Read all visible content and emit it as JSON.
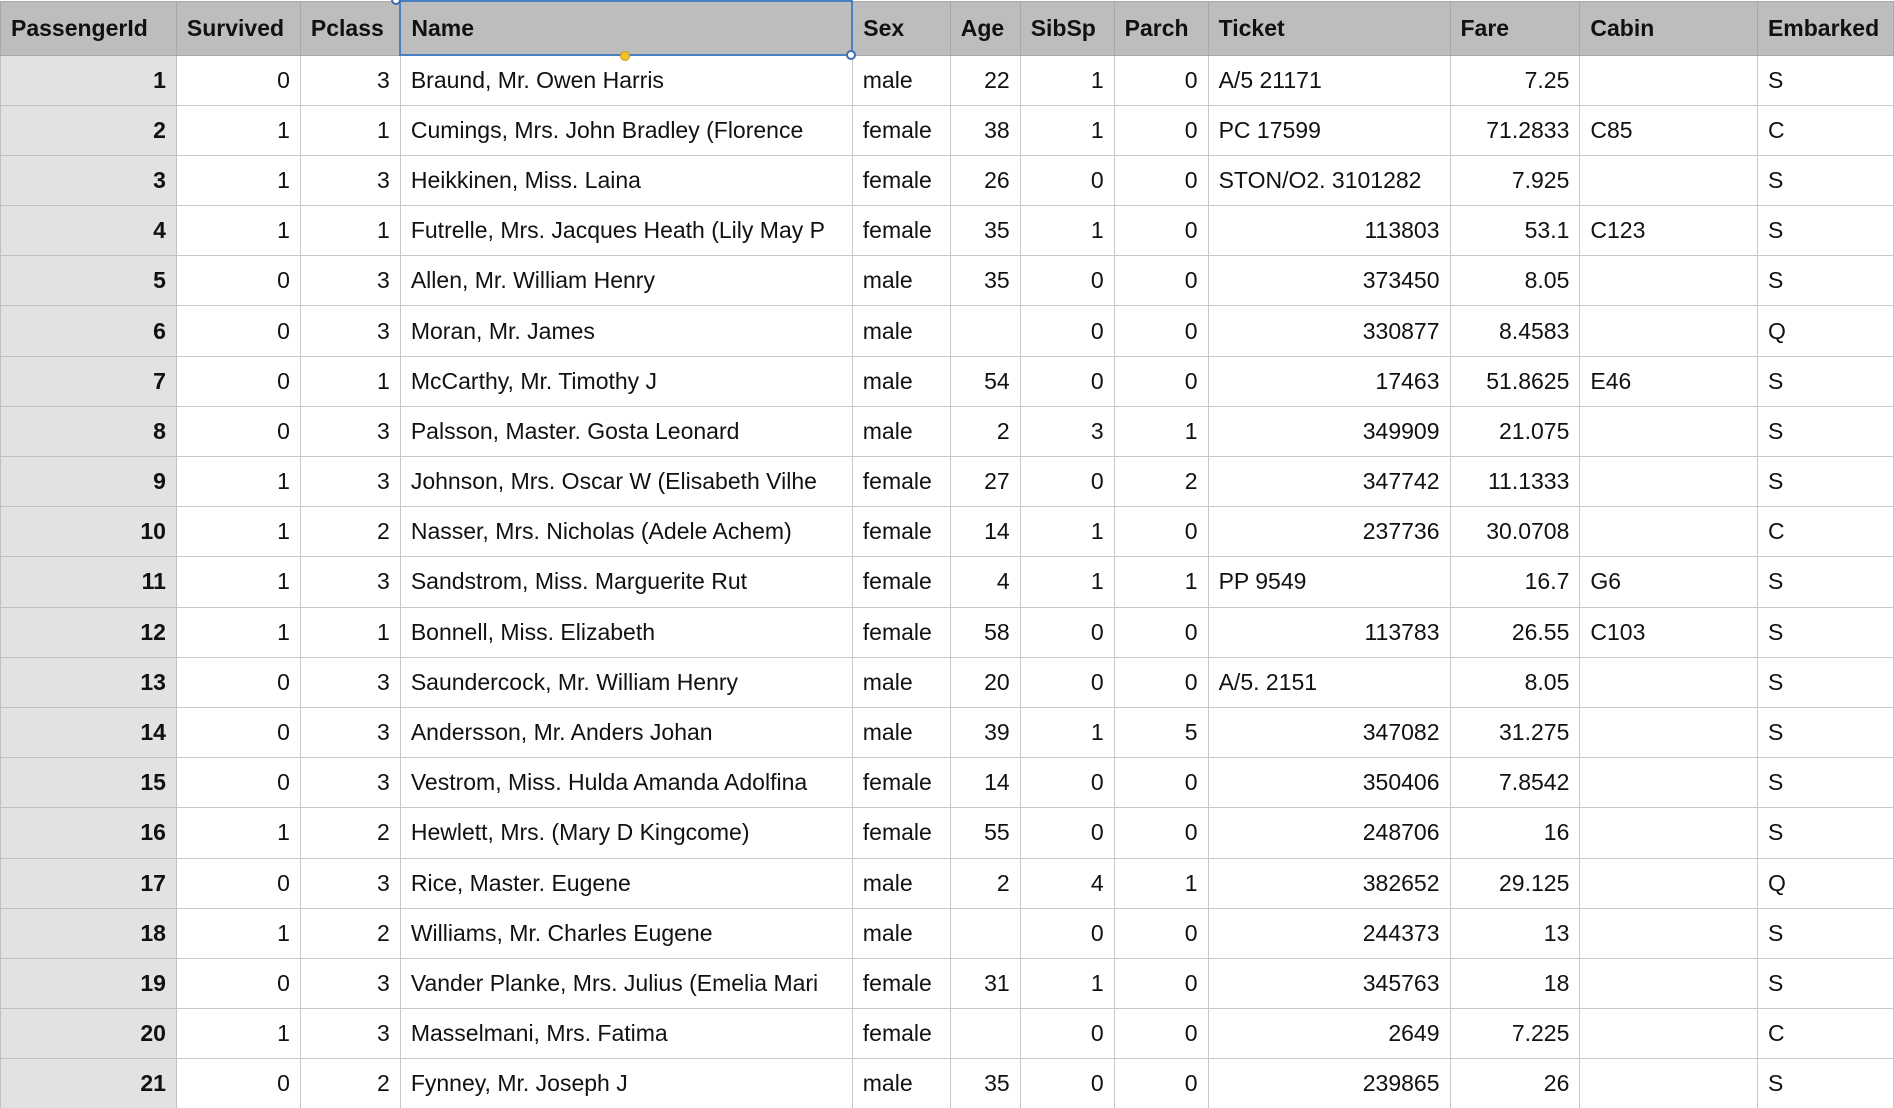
{
  "columns": [
    "PassengerId",
    "Survived",
    "Pclass",
    "Name",
    "Sex",
    "Age",
    "SibSp",
    "Parch",
    "Ticket",
    "Fare",
    "Cabin",
    "Embarked"
  ],
  "rows": [
    [
      "1",
      "0",
      "3",
      "Braund, Mr. Owen Harris",
      "male",
      "22",
      "1",
      "0",
      "A/5 21171",
      "7.25",
      "",
      "S"
    ],
    [
      "2",
      "1",
      "1",
      "Cumings, Mrs. John Bradley (Florence",
      "female",
      "38",
      "1",
      "0",
      "PC 17599",
      "71.2833",
      "C85",
      "C"
    ],
    [
      "3",
      "1",
      "3",
      "Heikkinen, Miss. Laina",
      "female",
      "26",
      "0",
      "0",
      "STON/O2. 3101282",
      "7.925",
      "",
      "S"
    ],
    [
      "4",
      "1",
      "1",
      "Futrelle, Mrs. Jacques Heath (Lily May P",
      "female",
      "35",
      "1",
      "0",
      "113803",
      "53.1",
      "C123",
      "S"
    ],
    [
      "5",
      "0",
      "3",
      "Allen, Mr. William Henry",
      "male",
      "35",
      "0",
      "0",
      "373450",
      "8.05",
      "",
      "S"
    ],
    [
      "6",
      "0",
      "3",
      "Moran, Mr. James",
      "male",
      "",
      "0",
      "0",
      "330877",
      "8.4583",
      "",
      "Q"
    ],
    [
      "7",
      "0",
      "1",
      "McCarthy, Mr. Timothy J",
      "male",
      "54",
      "0",
      "0",
      "17463",
      "51.8625",
      "E46",
      "S"
    ],
    [
      "8",
      "0",
      "3",
      "Palsson, Master. Gosta Leonard",
      "male",
      "2",
      "3",
      "1",
      "349909",
      "21.075",
      "",
      "S"
    ],
    [
      "9",
      "1",
      "3",
      "Johnson, Mrs. Oscar W (Elisabeth Vilhe",
      "female",
      "27",
      "0",
      "2",
      "347742",
      "11.1333",
      "",
      "S"
    ],
    [
      "10",
      "1",
      "2",
      "Nasser, Mrs. Nicholas (Adele Achem)",
      "female",
      "14",
      "1",
      "0",
      "237736",
      "30.0708",
      "",
      "C"
    ],
    [
      "11",
      "1",
      "3",
      "Sandstrom, Miss. Marguerite Rut",
      "female",
      "4",
      "1",
      "1",
      "PP 9549",
      "16.7",
      "G6",
      "S"
    ],
    [
      "12",
      "1",
      "1",
      "Bonnell, Miss. Elizabeth",
      "female",
      "58",
      "0",
      "0",
      "113783",
      "26.55",
      "C103",
      "S"
    ],
    [
      "13",
      "0",
      "3",
      "Saundercock, Mr. William Henry",
      "male",
      "20",
      "0",
      "0",
      "A/5. 2151",
      "8.05",
      "",
      "S"
    ],
    [
      "14",
      "0",
      "3",
      "Andersson, Mr. Anders Johan",
      "male",
      "39",
      "1",
      "5",
      "347082",
      "31.275",
      "",
      "S"
    ],
    [
      "15",
      "0",
      "3",
      "Vestrom, Miss. Hulda Amanda Adolfina",
      "female",
      "14",
      "0",
      "0",
      "350406",
      "7.8542",
      "",
      "S"
    ],
    [
      "16",
      "1",
      "2",
      "Hewlett, Mrs. (Mary D Kingcome)",
      "female",
      "55",
      "0",
      "0",
      "248706",
      "16",
      "",
      "S"
    ],
    [
      "17",
      "0",
      "3",
      "Rice, Master. Eugene",
      "male",
      "2",
      "4",
      "1",
      "382652",
      "29.125",
      "",
      "Q"
    ],
    [
      "18",
      "1",
      "2",
      "Williams, Mr. Charles Eugene",
      "male",
      "",
      "0",
      "0",
      "244373",
      "13",
      "",
      "S"
    ],
    [
      "19",
      "0",
      "3",
      "Vander Planke, Mrs. Julius (Emelia Mari",
      "female",
      "31",
      "1",
      "0",
      "345763",
      "18",
      "",
      "S"
    ],
    [
      "20",
      "1",
      "3",
      "Masselmani, Mrs. Fatima",
      "female",
      "",
      "0",
      "0",
      "2649",
      "7.225",
      "",
      "C"
    ],
    [
      "21",
      "0",
      "2",
      "Fynney, Mr. Joseph J",
      "male",
      "35",
      "0",
      "0",
      "239865",
      "26",
      "",
      "S"
    ]
  ]
}
